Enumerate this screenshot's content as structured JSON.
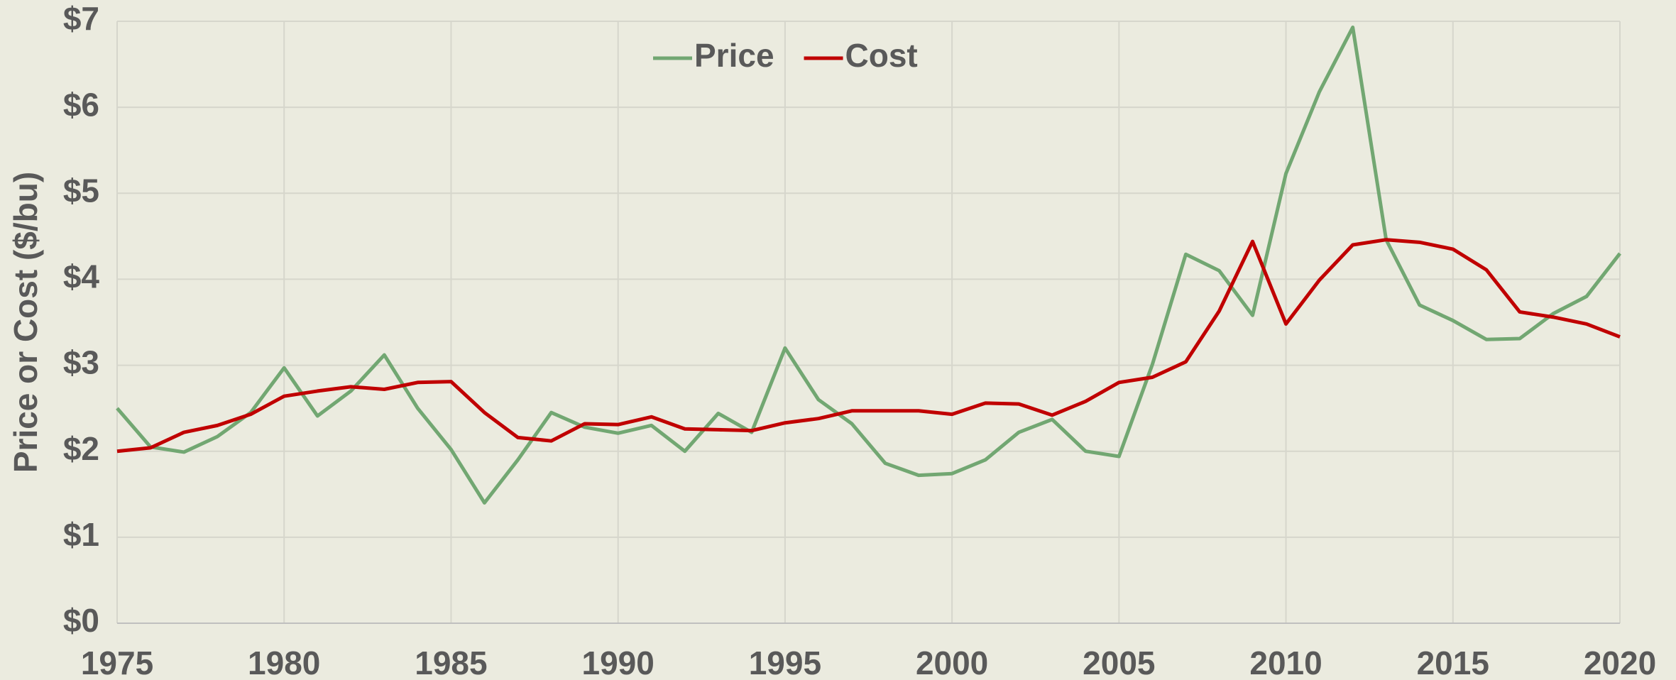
{
  "chart_data": {
    "type": "line",
    "y_label": "Price or Cost ($/bu)",
    "x": [
      1975,
      1976,
      1977,
      1978,
      1979,
      1980,
      1981,
      1982,
      1983,
      1984,
      1985,
      1986,
      1987,
      1988,
      1989,
      1990,
      1991,
      1992,
      1993,
      1994,
      1995,
      1996,
      1997,
      1998,
      1999,
      2000,
      2001,
      2002,
      2003,
      2004,
      2005,
      2006,
      2007,
      2008,
      2009,
      2010,
      2011,
      2012,
      2013,
      2014,
      2015,
      2016,
      2017,
      2018,
      2019,
      2020
    ],
    "series": [
      {
        "name": "Price",
        "color": "#72a772",
        "values": [
          2.5,
          2.05,
          1.99,
          2.17,
          2.45,
          2.97,
          2.41,
          2.7,
          3.12,
          2.5,
          2.02,
          1.4,
          1.9,
          2.45,
          2.28,
          2.21,
          2.3,
          2.0,
          2.44,
          2.22,
          3.2,
          2.6,
          2.32,
          1.86,
          1.72,
          1.74,
          1.9,
          2.22,
          2.37,
          2.0,
          1.94,
          3.01,
          4.29,
          4.1,
          3.58,
          5.23,
          6.18,
          6.93,
          4.46,
          3.7,
          3.52,
          3.3,
          3.31,
          3.6,
          3.8,
          4.3
        ]
      },
      {
        "name": "Cost",
        "color": "#c00000",
        "values": [
          2.0,
          2.04,
          2.22,
          2.3,
          2.43,
          2.64,
          2.7,
          2.75,
          2.72,
          2.8,
          2.81,
          2.45,
          2.16,
          2.12,
          2.32,
          2.31,
          2.4,
          2.26,
          2.25,
          2.24,
          2.33,
          2.38,
          2.47,
          2.47,
          2.47,
          2.43,
          2.56,
          2.55,
          2.42,
          2.58,
          2.8,
          2.86,
          3.04,
          3.63,
          4.44,
          3.48,
          3.99,
          4.4,
          4.46,
          4.43,
          4.35,
          4.11,
          3.62,
          3.56,
          3.48,
          3.33
        ]
      }
    ],
    "xlim": [
      1975,
      2020
    ],
    "xticks": [
      1975,
      1980,
      1985,
      1990,
      1995,
      2000,
      2005,
      2010,
      2015,
      2020
    ],
    "ylim": [
      0,
      7
    ],
    "yticks": [
      {
        "value": 0,
        "label": "$0"
      },
      {
        "value": 1,
        "label": "$1"
      },
      {
        "value": 2,
        "label": "$2"
      },
      {
        "value": 3,
        "label": "$3"
      },
      {
        "value": 4,
        "label": "$4"
      },
      {
        "value": 5,
        "label": "$5"
      },
      {
        "value": 6,
        "label": "$6"
      },
      {
        "value": 7,
        "label": "$7"
      }
    ],
    "grid": true,
    "legend": "top"
  }
}
